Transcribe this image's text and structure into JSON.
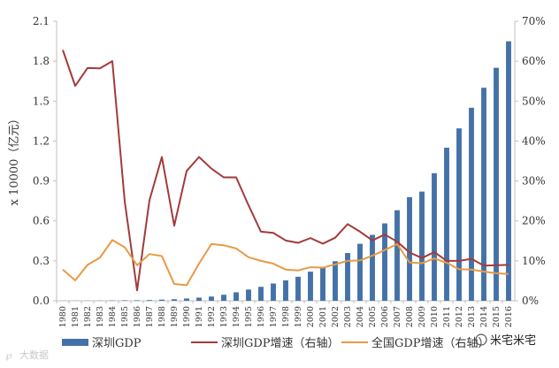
{
  "chart_data": {
    "type": "bar",
    "ylabel": "x 10000（亿元）",
    "left_axis": {
      "min": 0,
      "max": 2.1,
      "ticks": [
        "0.0",
        "0.3",
        "0.6",
        "0.9",
        "1.2",
        "1.5",
        "1.8",
        "2.1"
      ]
    },
    "right_axis": {
      "min": 0,
      "max": 70,
      "ticks": [
        "0%",
        "10%",
        "20%",
        "30%",
        "40%",
        "50%",
        "60%",
        "70%"
      ]
    },
    "grid": false,
    "legend_position": "bottom",
    "categories": [
      "1980",
      "1981",
      "1982",
      "1983",
      "1984",
      "1985",
      "1986",
      "1987",
      "1988",
      "1989",
      "1990",
      "1991",
      "1992",
      "1993",
      "1994",
      "1995",
      "1996",
      "1997",
      "1998",
      "1999",
      "2000",
      "2001",
      "2002",
      "2003",
      "2004",
      "2005",
      "2006",
      "2007",
      "2008",
      "2009",
      "2010",
      "2011",
      "2012",
      "2013",
      "2014",
      "2015",
      "2016"
    ],
    "series": [
      {
        "name": "深圳GDP",
        "type": "bar",
        "axis": "left",
        "color": "#4472a8",
        "values": [
          0.0003,
          0.0005,
          0.0008,
          0.0013,
          0.0023,
          0.0039,
          0.0042,
          0.0056,
          0.0087,
          0.0116,
          0.0172,
          0.0237,
          0.0317,
          0.0453,
          0.0635,
          0.0843,
          0.1048,
          0.1297,
          0.1535,
          0.1804,
          0.2187,
          0.2482,
          0.297,
          0.3586,
          0.4282,
          0.4951,
          0.5814,
          0.6802,
          0.7787,
          0.8201,
          0.9582,
          1.1502,
          1.295,
          1.45,
          1.6002,
          1.7503,
          1.9493
        ]
      },
      {
        "name": "深圳GDP增速（右轴）",
        "type": "line",
        "axis": "right",
        "color": "#a33b3b",
        "values": [
          62.8,
          53.8,
          58.3,
          58.2,
          60.0,
          24.9,
          2.6,
          25.2,
          36.0,
          18.8,
          32.5,
          36.0,
          33.1,
          30.9,
          30.9,
          23.9,
          17.3,
          17.0,
          15.1,
          14.5,
          15.7,
          14.3,
          15.8,
          19.2,
          17.3,
          15.1,
          16.6,
          14.8,
          12.1,
          10.7,
          12.2,
          10.0,
          10.0,
          10.5,
          8.8,
          8.9,
          9.0
        ]
      },
      {
        "name": "全国GDP增速（右轴）",
        "type": "line",
        "axis": "right",
        "color": "#e89a45",
        "values": [
          7.8,
          5.1,
          9.0,
          10.8,
          15.2,
          13.4,
          8.9,
          11.7,
          11.2,
          4.2,
          3.9,
          9.3,
          14.2,
          13.9,
          13.1,
          10.9,
          10.0,
          9.3,
          7.8,
          7.6,
          8.4,
          8.3,
          9.1,
          10.0,
          10.1,
          11.3,
          12.7,
          14.2,
          9.6,
          9.4,
          10.6,
          9.5,
          7.9,
          7.8,
          7.3,
          6.9,
          6.7
        ]
      }
    ]
  },
  "watermark": "大数据",
  "brand": "米宅米宅"
}
